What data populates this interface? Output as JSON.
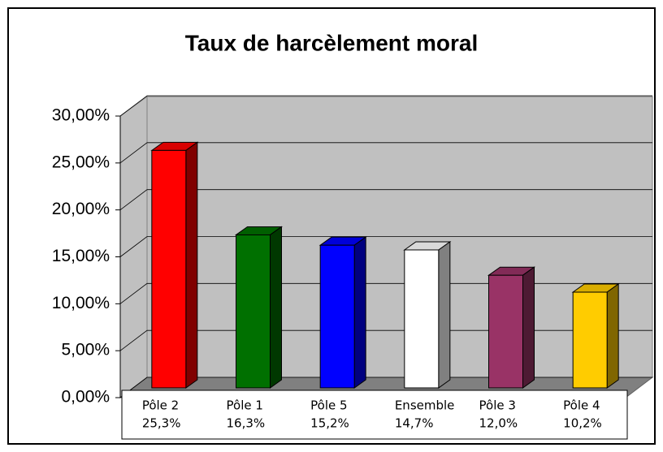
{
  "chart_data": {
    "type": "bar3d",
    "title": "Taux de harcèlement moral",
    "categories": [
      "Pôle 2",
      "Pôle 1",
      "Pôle 5",
      "Ensemble",
      "Pôle 3",
      "Pôle 4"
    ],
    "values": [
      25.3,
      16.3,
      15.2,
      14.7,
      12.0,
      10.2
    ],
    "value_labels": [
      "25,3%",
      "16,3%",
      "15,2%",
      "14,7%",
      "12,0%",
      "10,2%"
    ],
    "colors": [
      "#ff0000",
      "#007000",
      "#0000ff",
      "#ffffff",
      "#993366",
      "#ffcc00"
    ],
    "ylim": [
      0,
      30
    ],
    "yticks": [
      {
        "value": 0,
        "label": "0,00%"
      },
      {
        "value": 5,
        "label": "5,00%"
      },
      {
        "value": 10,
        "label": "10,00%"
      },
      {
        "value": 15,
        "label": "15,00%"
      },
      {
        "value": 20,
        "label": "20,00%"
      },
      {
        "value": 25,
        "label": "25,00%"
      },
      {
        "value": 30,
        "label": "30,00%"
      }
    ],
    "grid": true
  }
}
